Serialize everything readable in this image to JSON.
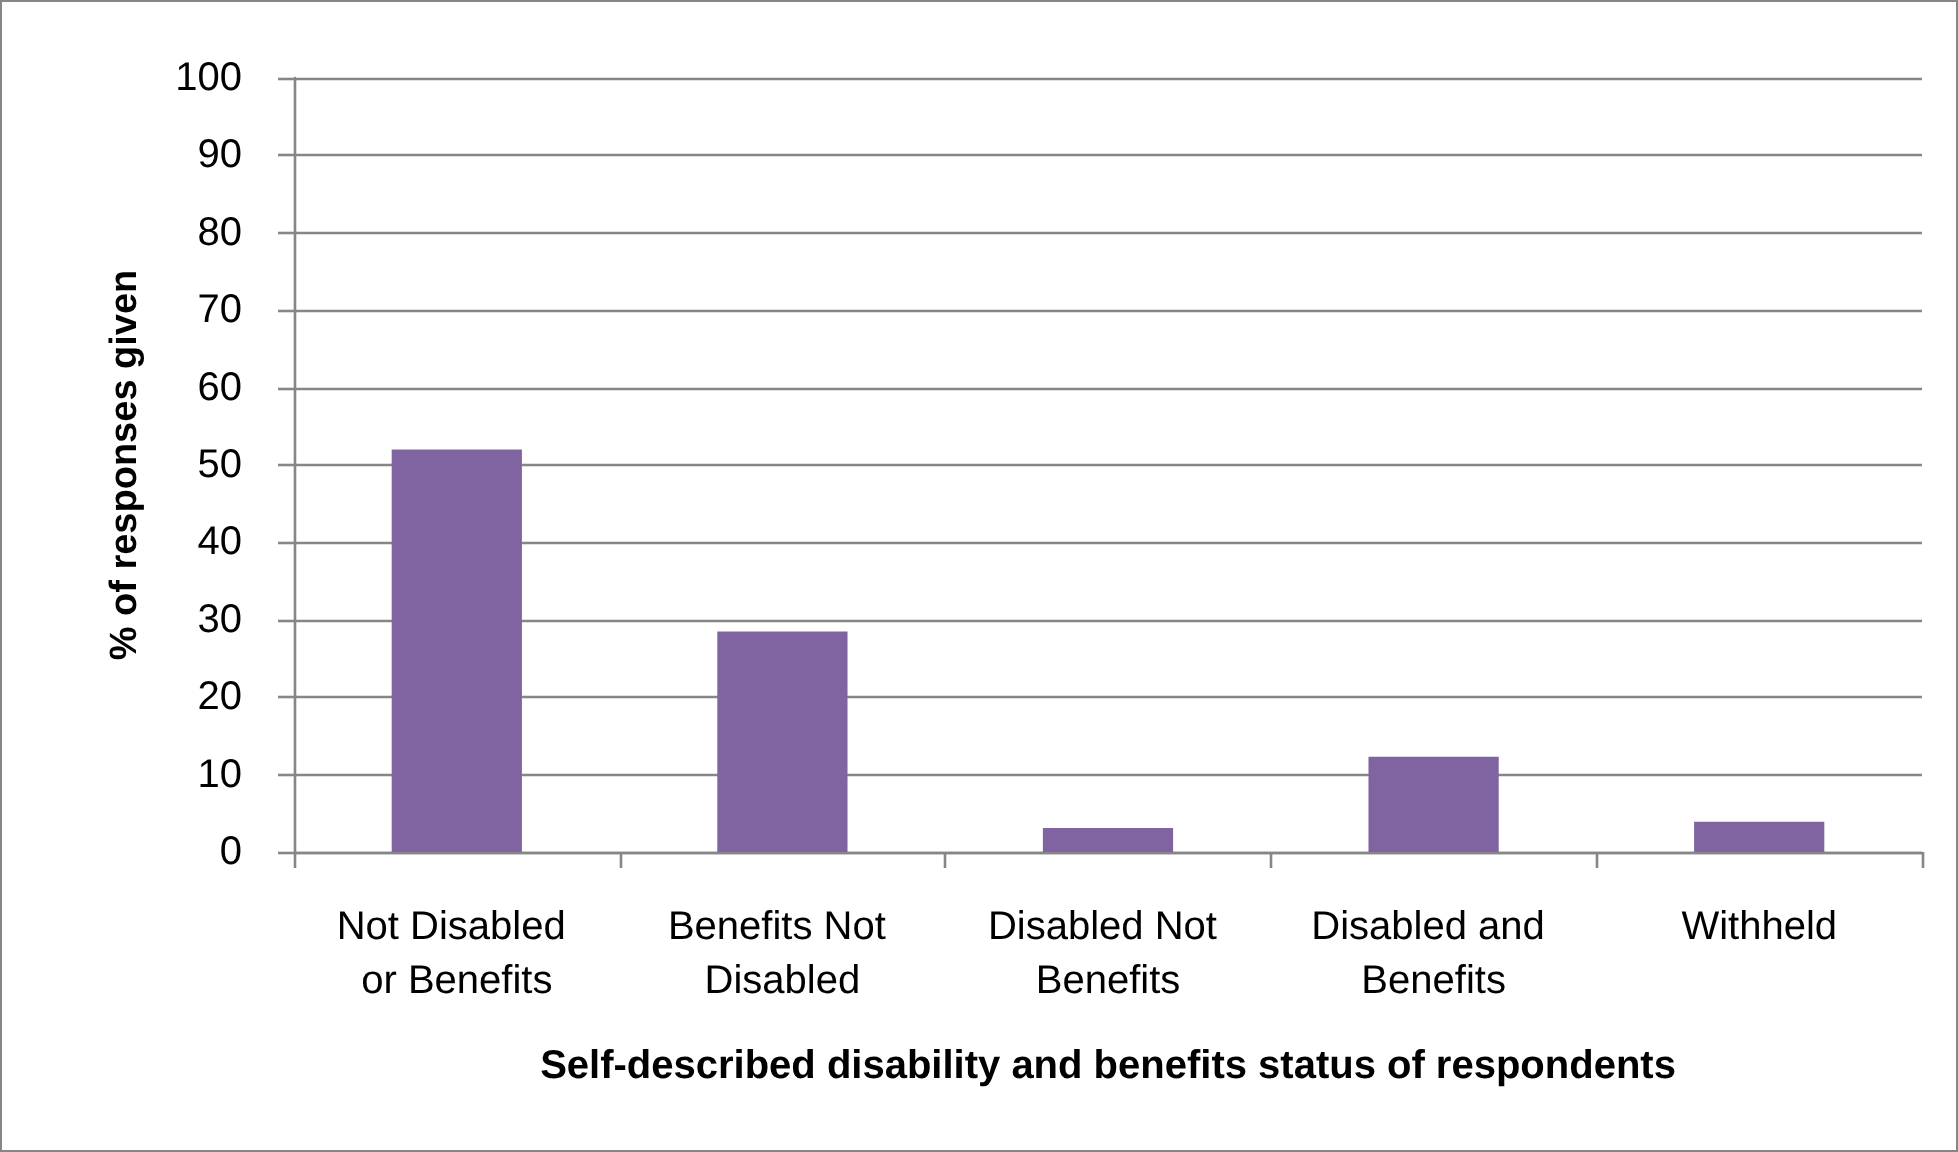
{
  "chart_data": {
    "type": "bar",
    "xlabel": "Self-described disability and benefits status of respondents",
    "ylabel": "% of responses given",
    "categories": [
      "Not Disabled or Benefits",
      "Benefits Not Disabled",
      "Disabled Not Benefits",
      "Disabled and Benefits",
      "Withheld"
    ],
    "values": [
      52,
      28.5,
      3.1,
      12.3,
      3.9
    ],
    "color": "#8064a2",
    "ylim": [
      0,
      100
    ],
    "yticks": [
      0,
      10,
      20,
      30,
      40,
      50,
      60,
      70,
      80,
      90,
      100
    ],
    "grid": "y"
  }
}
